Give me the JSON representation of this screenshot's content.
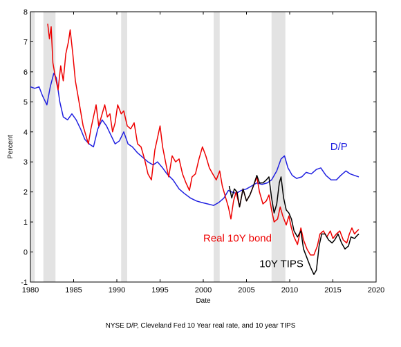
{
  "chart_data": {
    "type": "line",
    "title": "",
    "caption": "NYSE D/P, Cleveland Fed 10 Year real rate, and 10 year TIPS",
    "xlabel": "Date",
    "ylabel": "Percent",
    "xlim": [
      1980,
      2020
    ],
    "ylim": [
      -1,
      8
    ],
    "xticks": [
      1980,
      1985,
      1990,
      1995,
      2000,
      2005,
      2010,
      2015,
      2020
    ],
    "yticks": [
      -1,
      0,
      1,
      2,
      3,
      4,
      5,
      6,
      7,
      8
    ],
    "grid": false,
    "legend": "none",
    "recessions": [
      [
        1980.0,
        1980.5
      ],
      [
        1981.5,
        1982.9
      ],
      [
        1990.5,
        1991.2
      ],
      [
        2001.2,
        2001.9
      ],
      [
        2007.9,
        2009.5
      ]
    ],
    "recession_color": "#e3e3e3",
    "series": [
      {
        "name": "D/P",
        "color": "#2020e0",
        "label_pos": [
          2014.7,
          3.4
        ],
        "points": [
          [
            1980.0,
            5.5
          ],
          [
            1980.5,
            5.45
          ],
          [
            1981.0,
            5.5
          ],
          [
            1981.4,
            5.2
          ],
          [
            1981.9,
            4.9
          ],
          [
            1982.3,
            5.5
          ],
          [
            1982.7,
            5.95
          ],
          [
            1983.0,
            5.8
          ],
          [
            1983.4,
            5.0
          ],
          [
            1983.8,
            4.5
          ],
          [
            1984.3,
            4.4
          ],
          [
            1984.8,
            4.6
          ],
          [
            1985.3,
            4.4
          ],
          [
            1985.8,
            4.1
          ],
          [
            1986.3,
            3.75
          ],
          [
            1986.8,
            3.6
          ],
          [
            1987.3,
            3.5
          ],
          [
            1987.8,
            4.1
          ],
          [
            1988.3,
            4.4
          ],
          [
            1988.8,
            4.2
          ],
          [
            1989.3,
            3.9
          ],
          [
            1989.8,
            3.6
          ],
          [
            1990.3,
            3.7
          ],
          [
            1990.8,
            4.0
          ],
          [
            1991.3,
            3.6
          ],
          [
            1991.8,
            3.5
          ],
          [
            1992.4,
            3.3
          ],
          [
            1993.0,
            3.15
          ],
          [
            1993.6,
            3.0
          ],
          [
            1994.2,
            2.9
          ],
          [
            1994.7,
            3.0
          ],
          [
            1995.3,
            2.8
          ],
          [
            1995.8,
            2.6
          ],
          [
            1996.5,
            2.4
          ],
          [
            1997.2,
            2.1
          ],
          [
            1997.8,
            1.95
          ],
          [
            1998.5,
            1.8
          ],
          [
            1999.2,
            1.7
          ],
          [
            1999.8,
            1.65
          ],
          [
            2000.5,
            1.6
          ],
          [
            2001.2,
            1.55
          ],
          [
            2001.8,
            1.65
          ],
          [
            2002.4,
            1.8
          ],
          [
            2002.9,
            2.05
          ],
          [
            2003.3,
            2.0
          ],
          [
            2003.8,
            1.95
          ],
          [
            2004.4,
            2.05
          ],
          [
            2005.0,
            2.1
          ],
          [
            2005.6,
            2.2
          ],
          [
            2006.2,
            2.3
          ],
          [
            2006.8,
            2.25
          ],
          [
            2007.4,
            2.3
          ],
          [
            2007.9,
            2.4
          ],
          [
            2008.5,
            2.7
          ],
          [
            2009.0,
            3.1
          ],
          [
            2009.4,
            3.2
          ],
          [
            2009.8,
            2.8
          ],
          [
            2010.3,
            2.55
          ],
          [
            2010.8,
            2.45
          ],
          [
            2011.4,
            2.5
          ],
          [
            2011.9,
            2.65
          ],
          [
            2012.5,
            2.6
          ],
          [
            2013.1,
            2.75
          ],
          [
            2013.6,
            2.8
          ],
          [
            2014.2,
            2.55
          ],
          [
            2014.8,
            2.4
          ],
          [
            2015.4,
            2.4
          ],
          [
            2015.9,
            2.55
          ],
          [
            2016.5,
            2.7
          ],
          [
            2017.0,
            2.6
          ],
          [
            2017.5,
            2.55
          ],
          [
            2018.0,
            2.5
          ]
        ]
      },
      {
        "name": "Real 10Y bond",
        "color": "#ee0000",
        "label_pos": [
          2000.0,
          0.35
        ],
        "points": [
          [
            1982.0,
            7.6
          ],
          [
            1982.2,
            7.1
          ],
          [
            1982.4,
            7.5
          ],
          [
            1982.6,
            6.3
          ],
          [
            1982.9,
            5.8
          ],
          [
            1983.2,
            5.4
          ],
          [
            1983.5,
            6.2
          ],
          [
            1983.8,
            5.7
          ],
          [
            1984.1,
            6.6
          ],
          [
            1984.4,
            7.0
          ],
          [
            1984.6,
            7.4
          ],
          [
            1984.9,
            6.6
          ],
          [
            1985.2,
            5.7
          ],
          [
            1985.5,
            5.2
          ],
          [
            1985.8,
            4.7
          ],
          [
            1986.1,
            4.2
          ],
          [
            1986.4,
            3.9
          ],
          [
            1986.7,
            3.6
          ],
          [
            1987.0,
            4.1
          ],
          [
            1987.3,
            4.5
          ],
          [
            1987.6,
            4.9
          ],
          [
            1987.9,
            4.2
          ],
          [
            1988.2,
            4.5
          ],
          [
            1988.6,
            4.9
          ],
          [
            1988.9,
            4.5
          ],
          [
            1989.2,
            4.6
          ],
          [
            1989.5,
            4.0
          ],
          [
            1989.8,
            4.3
          ],
          [
            1990.1,
            4.9
          ],
          [
            1990.5,
            4.6
          ],
          [
            1990.8,
            4.7
          ],
          [
            1991.2,
            4.2
          ],
          [
            1991.6,
            4.1
          ],
          [
            1992.0,
            4.3
          ],
          [
            1992.4,
            3.6
          ],
          [
            1992.8,
            3.5
          ],
          [
            1993.2,
            3.1
          ],
          [
            1993.6,
            2.6
          ],
          [
            1994.0,
            2.4
          ],
          [
            1994.4,
            3.4
          ],
          [
            1994.7,
            3.8
          ],
          [
            1995.0,
            4.2
          ],
          [
            1995.3,
            3.5
          ],
          [
            1995.7,
            2.9
          ],
          [
            1996.0,
            2.5
          ],
          [
            1996.4,
            3.2
          ],
          [
            1996.8,
            3.0
          ],
          [
            1997.2,
            3.1
          ],
          [
            1997.6,
            2.6
          ],
          [
            1998.0,
            2.3
          ],
          [
            1998.4,
            2.05
          ],
          [
            1998.7,
            2.5
          ],
          [
            1999.1,
            2.6
          ],
          [
            1999.5,
            3.1
          ],
          [
            1999.9,
            3.5
          ],
          [
            2000.3,
            3.2
          ],
          [
            2000.7,
            2.8
          ],
          [
            2001.1,
            2.6
          ],
          [
            2001.5,
            2.4
          ],
          [
            2001.9,
            2.7
          ],
          [
            2002.2,
            2.2
          ],
          [
            2002.6,
            1.8
          ],
          [
            2002.9,
            1.5
          ],
          [
            2003.2,
            1.1
          ],
          [
            2003.5,
            1.7
          ],
          [
            2003.8,
            2.0
          ],
          [
            2004.2,
            1.5
          ],
          [
            2004.6,
            2.1
          ],
          [
            2005.0,
            1.7
          ],
          [
            2005.4,
            1.9
          ],
          [
            2005.8,
            2.2
          ],
          [
            2006.2,
            2.5
          ],
          [
            2006.5,
            2.0
          ],
          [
            2006.9,
            1.6
          ],
          [
            2007.3,
            1.7
          ],
          [
            2007.6,
            1.9
          ],
          [
            2007.9,
            1.4
          ],
          [
            2008.2,
            1.0
          ],
          [
            2008.6,
            1.1
          ],
          [
            2008.9,
            1.5
          ],
          [
            2009.2,
            1.2
          ],
          [
            2009.6,
            0.9
          ],
          [
            2009.9,
            1.2
          ],
          [
            2010.2,
            0.8
          ],
          [
            2010.5,
            0.5
          ],
          [
            2010.9,
            0.25
          ],
          [
            2011.3,
            0.8
          ],
          [
            2011.6,
            0.4
          ],
          [
            2012.0,
            0.1
          ],
          [
            2012.4,
            -0.1
          ],
          [
            2012.8,
            -0.1
          ],
          [
            2013.2,
            0.2
          ],
          [
            2013.5,
            0.6
          ],
          [
            2013.9,
            0.7
          ],
          [
            2014.3,
            0.5
          ],
          [
            2014.7,
            0.7
          ],
          [
            2015.0,
            0.45
          ],
          [
            2015.4,
            0.6
          ],
          [
            2015.8,
            0.7
          ],
          [
            2016.2,
            0.4
          ],
          [
            2016.6,
            0.3
          ],
          [
            2016.9,
            0.6
          ],
          [
            2017.2,
            0.8
          ],
          [
            2017.5,
            0.6
          ],
          [
            2017.8,
            0.7
          ],
          [
            2018.0,
            0.75
          ]
        ]
      },
      {
        "name": "10Y TIPS",
        "color": "#000000",
        "label_pos": [
          2006.5,
          -0.5
        ],
        "points": [
          [
            2003.0,
            2.2
          ],
          [
            2003.3,
            1.8
          ],
          [
            2003.6,
            2.1
          ],
          [
            2003.9,
            2.0
          ],
          [
            2004.2,
            1.5
          ],
          [
            2004.6,
            2.1
          ],
          [
            2005.0,
            1.7
          ],
          [
            2005.4,
            1.9
          ],
          [
            2005.8,
            2.2
          ],
          [
            2006.2,
            2.55
          ],
          [
            2006.5,
            2.3
          ],
          [
            2006.9,
            2.3
          ],
          [
            2007.3,
            2.4
          ],
          [
            2007.6,
            2.5
          ],
          [
            2007.9,
            1.8
          ],
          [
            2008.2,
            1.3
          ],
          [
            2008.5,
            1.6
          ],
          [
            2008.8,
            2.3
          ],
          [
            2009.0,
            2.5
          ],
          [
            2009.3,
            1.8
          ],
          [
            2009.6,
            1.4
          ],
          [
            2009.9,
            1.3
          ],
          [
            2010.2,
            1.1
          ],
          [
            2010.5,
            0.7
          ],
          [
            2010.9,
            0.5
          ],
          [
            2011.3,
            0.7
          ],
          [
            2011.6,
            0.1
          ],
          [
            2012.0,
            -0.2
          ],
          [
            2012.4,
            -0.5
          ],
          [
            2012.8,
            -0.75
          ],
          [
            2013.1,
            -0.6
          ],
          [
            2013.4,
            0.2
          ],
          [
            2013.7,
            0.6
          ],
          [
            2014.1,
            0.6
          ],
          [
            2014.5,
            0.4
          ],
          [
            2014.9,
            0.3
          ],
          [
            2015.2,
            0.4
          ],
          [
            2015.6,
            0.6
          ],
          [
            2016.0,
            0.3
          ],
          [
            2016.4,
            0.1
          ],
          [
            2016.8,
            0.2
          ],
          [
            2017.1,
            0.5
          ],
          [
            2017.5,
            0.45
          ],
          [
            2017.8,
            0.55
          ],
          [
            2018.0,
            0.6
          ]
        ]
      }
    ]
  }
}
